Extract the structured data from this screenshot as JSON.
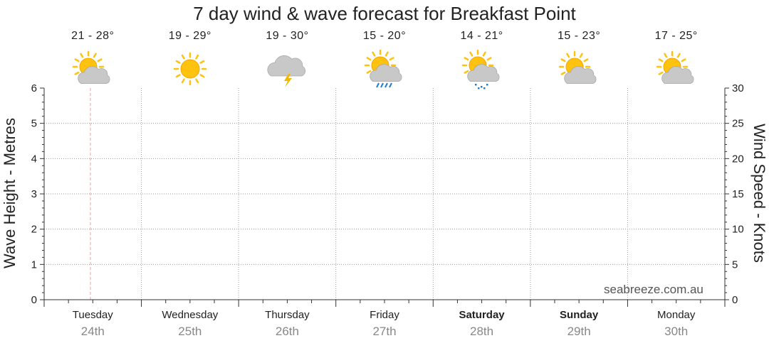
{
  "chart_data": {
    "type": "line",
    "title": "7 day wind & wave forecast for Breakfast Point",
    "ylabel_left": "Wave Height - Metres",
    "ylabel_right": "Wind Speed - Knots",
    "ylim_left": [
      0,
      6
    ],
    "ylim_right": [
      0,
      30
    ],
    "yticks_left": [
      "0",
      "1",
      "2",
      "3",
      "4",
      "5",
      "6"
    ],
    "yticks_right": [
      "0",
      "5",
      "10",
      "15",
      "20",
      "25",
      "30"
    ],
    "grid": true,
    "days": [
      {
        "day": "Tuesday",
        "date": "24th",
        "temp": "21 - 28°",
        "icon": "partly-cloudy-icon",
        "bold": false
      },
      {
        "day": "Wednesday",
        "date": "25th",
        "temp": "19 - 29°",
        "icon": "sunny-icon",
        "bold": false
      },
      {
        "day": "Thursday",
        "date": "26th",
        "temp": "19 - 30°",
        "icon": "thunderstorm-icon",
        "bold": false
      },
      {
        "day": "Friday",
        "date": "27th",
        "temp": "15 - 20°",
        "icon": "shower-icon",
        "bold": false
      },
      {
        "day": "Saturday",
        "date": "28th",
        "temp": "14 - 21°",
        "icon": "light-rain-icon",
        "bold": true
      },
      {
        "day": "Sunday",
        "date": "29th",
        "temp": "15 - 23°",
        "icon": "partly-cloudy-icon",
        "bold": true
      },
      {
        "day": "Monday",
        "date": "30th",
        "temp": "17 - 25°",
        "icon": "partly-cloudy-icon",
        "bold": false
      }
    ],
    "series": [],
    "watermark": "seabreeze.com.au"
  },
  "colors": {
    "sun": "#FFC20E",
    "sun_outline": "#F5A800",
    "cloud": "#C8C8C8",
    "cloud_dark": "#9E9E9E",
    "rain": "#1E7FD8",
    "lightning": "#F5B800",
    "now_line": "#E8A0A0",
    "grid": "#999999"
  }
}
